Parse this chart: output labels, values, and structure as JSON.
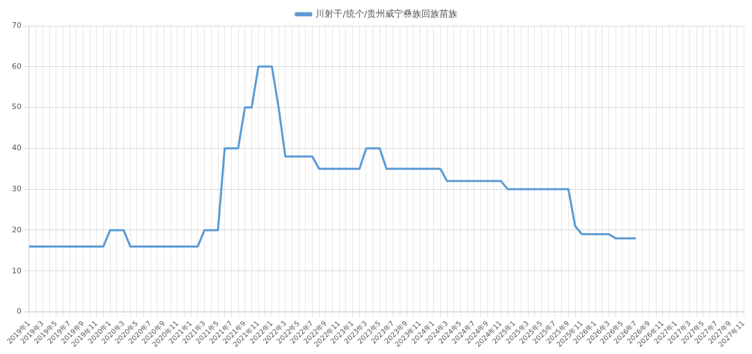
{
  "chart_data": {
    "type": "line",
    "categories": [
      "2019年1",
      null,
      "2019年3",
      null,
      "2019年5",
      null,
      "2019年7",
      null,
      "2019年9",
      null,
      "2019年11",
      null,
      "2020年1",
      null,
      "2020年3",
      null,
      "2020年5",
      null,
      "2020年7",
      null,
      "2020年9",
      null,
      "2020年11",
      null,
      "2021年1",
      null,
      "2021年3",
      null,
      "2021年5",
      null,
      "2021年7",
      null,
      "2021年9",
      null,
      "2021年11",
      null,
      "2022年1",
      null,
      "2022年3",
      null,
      "2022年5",
      null,
      "2022年7",
      null,
      "2022年9",
      null,
      "2022年11",
      null,
      "2023年1",
      null,
      "2023年3",
      null,
      "2023年5",
      null,
      "2023年7",
      null,
      "2023年9",
      null,
      "2023年11",
      null,
      "2024年1",
      null,
      "2024年3",
      null,
      "2024年5",
      null,
      "2024年7",
      null,
      "2024年9",
      null,
      "2024年11",
      null,
      "2025年1",
      null,
      "2025年3",
      null,
      "2025年5",
      null,
      "2025年7",
      null,
      "2025年9",
      null,
      "2025年11",
      null,
      "2026年1",
      null,
      "2026年3",
      null,
      "2026年5",
      null,
      "2026年7",
      null,
      "2026年9",
      null,
      "2026年11",
      null,
      "2027年1",
      null,
      "2027年3",
      null,
      "2027年5",
      null,
      "2027年7",
      null,
      "2027年9",
      null,
      "2027年11"
    ],
    "series": [
      {
        "name": "川射干/统个/贵州威宁彝族回族苗族",
        "color": "#5b9bd5",
        "values": [
          16,
          16,
          16,
          16,
          16,
          16,
          16,
          16,
          16,
          16,
          16,
          16,
          20,
          20,
          20,
          16,
          16,
          16,
          16,
          16,
          16,
          16,
          16,
          16,
          16,
          16,
          20,
          20,
          20,
          40,
          40,
          40,
          50,
          50,
          60,
          60,
          60,
          50,
          38,
          38,
          38,
          38,
          38,
          35,
          35,
          35,
          35,
          35,
          35,
          35,
          40,
          40,
          40,
          35,
          35,
          35,
          35,
          35,
          35,
          35,
          35,
          35,
          32,
          32,
          32,
          32,
          32,
          32,
          32,
          32,
          32,
          30,
          30,
          30,
          30,
          30,
          30,
          30,
          30,
          30,
          30,
          21,
          19,
          19,
          19,
          19,
          19,
          18,
          18,
          18,
          18,
          null,
          null,
          null,
          null,
          null,
          null,
          null,
          null,
          null,
          null,
          null,
          null,
          null,
          null,
          null,
          null
        ]
      }
    ],
    "ylim": [
      0,
      70
    ],
    "yticks": [
      0,
      10,
      20,
      30,
      40,
      50,
      60,
      70
    ],
    "grid": true,
    "legend": "top",
    "marker": "none",
    "line_style": "solid"
  }
}
